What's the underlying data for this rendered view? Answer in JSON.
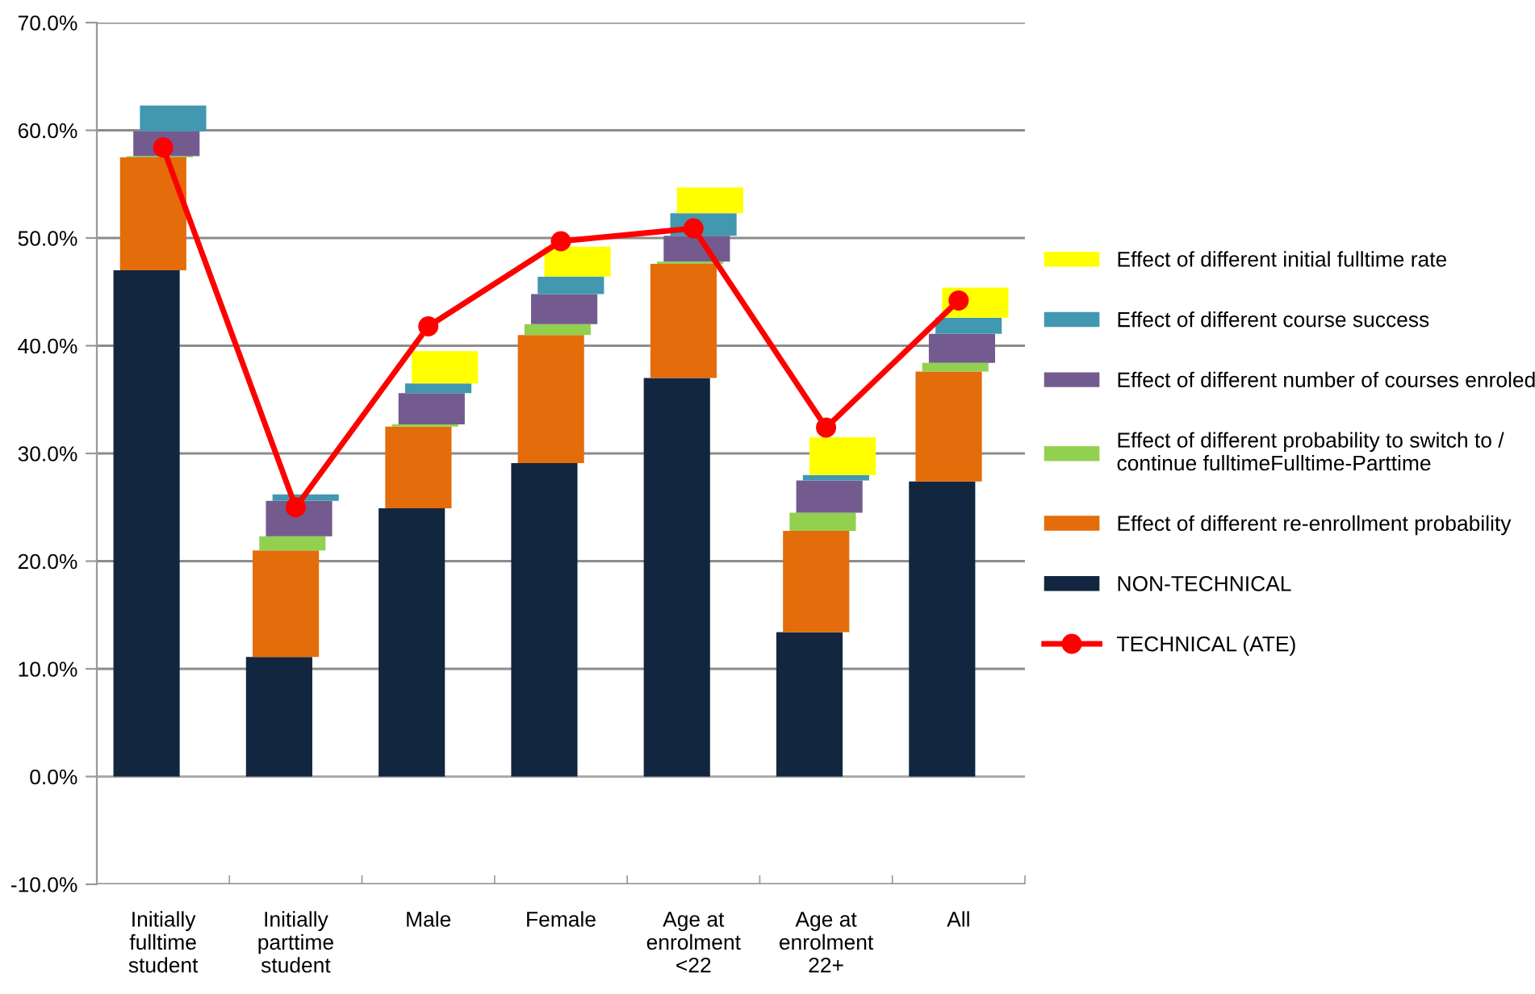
{
  "chart_data": {
    "type": "bar",
    "categories": [
      "Initially\nfulltime\nstudent",
      "Initially\nparttime\nstudent",
      "Male",
      "Female",
      "Age at\nenrolment\n<22",
      "Age at\nenrolment\n22+",
      "All"
    ],
    "series": [
      {
        "name": "NON-TECHNICAL",
        "color": "#12263f",
        "values": [
          47.0,
          11.1,
          24.9,
          29.1,
          37.0,
          13.4,
          27.4
        ],
        "base": [
          0,
          0,
          0,
          0,
          0,
          0,
          0
        ]
      },
      {
        "name": "Effect of different re-enrollment probability",
        "color": "#e46c0a",
        "values": [
          10.5,
          9.9,
          7.6,
          11.9,
          10.6,
          9.4,
          10.2
        ],
        "base": [
          47.0,
          11.1,
          24.9,
          29.1,
          37.0,
          13.4,
          27.4
        ]
      },
      {
        "name": "Effect of different probability to switch to /\ncontinue fulltimeFulltime-Parttime",
        "color": "#92d050",
        "values": [
          0.1,
          1.3,
          0.2,
          1.0,
          0.2,
          1.7,
          0.8
        ],
        "base": [
          57.5,
          21.0,
          32.5,
          41.0,
          47.6,
          22.8,
          37.6
        ]
      },
      {
        "name": "Effect of different number of courses enroled",
        "color": "#735b8f",
        "values": [
          2.3,
          3.3,
          2.9,
          2.8,
          2.4,
          3.0,
          2.7
        ],
        "base": [
          57.6,
          22.3,
          32.7,
          42.0,
          47.8,
          24.5,
          38.4
        ]
      },
      {
        "name": "Effect of different course success",
        "color": "#4198b0",
        "values": [
          2.4,
          0.6,
          0.9,
          1.6,
          2.1,
          0.5,
          1.5
        ],
        "base": [
          59.9,
          25.6,
          35.6,
          44.8,
          50.2,
          27.5,
          41.1
        ]
      },
      {
        "name": "Effect of different initial fulltime rate",
        "color": "#ffff00",
        "values": [
          null,
          null,
          3.0,
          2.8,
          2.4,
          3.5,
          2.8
        ],
        "base": [
          null,
          null,
          36.5,
          46.4,
          52.3,
          28.0,
          42.6
        ]
      },
      {
        "name": "TECHNICAL (ATE)",
        "type": "line",
        "color": "#ff0000",
        "marker": "circle",
        "line_style": "solid",
        "values": [
          58.4,
          25.0,
          41.8,
          49.7,
          50.9,
          32.4,
          44.2
        ]
      }
    ],
    "ylim": [
      -10,
      70
    ],
    "yticks": [
      {
        "value": -10,
        "label": "-10.0%"
      },
      {
        "value": 0,
        "label": "0.0%"
      },
      {
        "value": 10,
        "label": "10.0%"
      },
      {
        "value": 20,
        "label": "20.0%"
      },
      {
        "value": 30,
        "label": "30.0%"
      },
      {
        "value": 40,
        "label": "40.0%"
      },
      {
        "value": 50,
        "label": "50.0%"
      },
      {
        "value": 60,
        "label": "60.0%"
      },
      {
        "value": 70,
        "label": "70.0%"
      }
    ],
    "grid": "y",
    "legend": "right"
  }
}
